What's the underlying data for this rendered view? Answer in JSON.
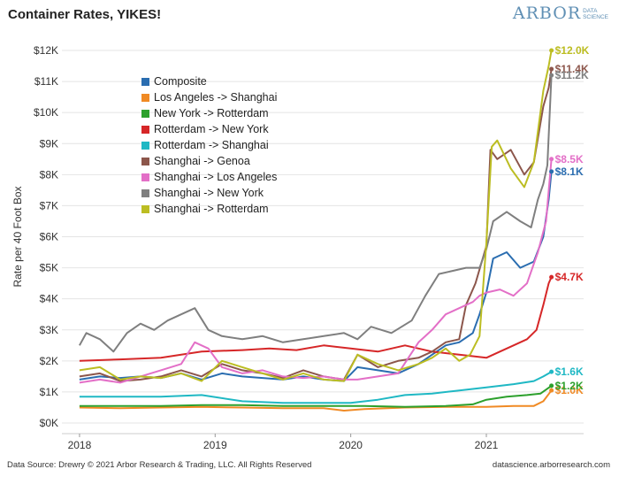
{
  "header": {
    "title": "Container Rates, YIKES!"
  },
  "logo": {
    "main": "ARBOR",
    "sub1": "DATA",
    "sub2": "SCIENCE"
  },
  "footer": {
    "source": "Data Source: Drewry © 2021 Arbor Research & Trading, LLC. All Rights Reserved",
    "site": "datascience.arborresearch.com"
  },
  "chart_data": {
    "type": "line",
    "title": "Container Rates, YIKES!",
    "xlabel": "",
    "ylabel": "Rate per 40 Foot Box",
    "xlim": [
      2018.0,
      2021.5
    ],
    "ylim": [
      0,
      12000
    ],
    "x_ticks": [
      2018,
      2019,
      2020,
      2021
    ],
    "y_ticks": [
      0,
      1000,
      2000,
      3000,
      4000,
      5000,
      6000,
      7000,
      8000,
      9000,
      10000,
      11000,
      12000
    ],
    "y_tick_labels": [
      "$0K",
      "$1K",
      "$2K",
      "$3K",
      "$4K",
      "$5K",
      "$6K",
      "$7K",
      "$8K",
      "$9K",
      "$10K",
      "$11K",
      "$12K"
    ],
    "grid": "horizontal",
    "legend_position": "top-left",
    "series": [
      {
        "name": "Composite",
        "color": "#2a6db0",
        "end_label": "$8.1K",
        "x": [
          2018.0,
          2018.15,
          2018.3,
          2018.45,
          2018.6,
          2018.75,
          2018.9,
          2019.05,
          2019.2,
          2019.35,
          2019.5,
          2019.65,
          2019.8,
          2019.95,
          2020.05,
          2020.2,
          2020.35,
          2020.5,
          2020.6,
          2020.7,
          2020.8,
          2020.9,
          2020.95,
          2021.0,
          2021.05,
          2021.15,
          2021.25,
          2021.35,
          2021.42,
          2021.46,
          2021.48
        ],
        "y": [
          1400,
          1500,
          1450,
          1500,
          1450,
          1600,
          1400,
          1600,
          1500,
          1450,
          1400,
          1500,
          1400,
          1350,
          1800,
          1700,
          1600,
          1900,
          2200,
          2500,
          2600,
          2900,
          3500,
          4200,
          5300,
          5500,
          5000,
          5200,
          6000,
          7200,
          8100
        ]
      },
      {
        "name": "Los Angeles -> Shanghai",
        "color": "#f08a24",
        "end_label": "$1.0K",
        "x": [
          2018.0,
          2018.3,
          2018.6,
          2018.9,
          2019.2,
          2019.5,
          2019.8,
          2019.95,
          2020.1,
          2020.4,
          2020.7,
          2021.0,
          2021.2,
          2021.35,
          2021.42,
          2021.48
        ],
        "y": [
          500,
          480,
          500,
          520,
          500,
          480,
          480,
          400,
          450,
          500,
          520,
          520,
          550,
          550,
          700,
          1050
        ]
      },
      {
        "name": "New York -> Rotterdam",
        "color": "#2ca02c",
        "end_label": "$1.2K",
        "x": [
          2018.0,
          2018.3,
          2018.6,
          2018.9,
          2019.2,
          2019.5,
          2019.8,
          2020.1,
          2020.4,
          2020.7,
          2020.9,
          2021.0,
          2021.15,
          2021.3,
          2021.4,
          2021.48
        ],
        "y": [
          550,
          550,
          550,
          580,
          580,
          550,
          550,
          550,
          520,
          550,
          600,
          750,
          850,
          900,
          950,
          1200
        ]
      },
      {
        "name": "Rotterdam -> New York",
        "color": "#d62728",
        "end_label": "$4.7K",
        "x": [
          2018.0,
          2018.3,
          2018.6,
          2018.9,
          2019.2,
          2019.4,
          2019.6,
          2019.8,
          2020.0,
          2020.2,
          2020.4,
          2020.6,
          2020.8,
          2021.0,
          2021.1,
          2021.2,
          2021.3,
          2021.37,
          2021.42,
          2021.46,
          2021.48
        ],
        "y": [
          2000,
          2050,
          2100,
          2300,
          2350,
          2400,
          2350,
          2500,
          2400,
          2300,
          2500,
          2300,
          2200,
          2100,
          2300,
          2500,
          2700,
          3000,
          3800,
          4500,
          4700
        ]
      },
      {
        "name": "Rotterdam -> Shanghai",
        "color": "#1fb8c4",
        "end_label": "$1.6K",
        "x": [
          2018.0,
          2018.3,
          2018.6,
          2018.9,
          2019.2,
          2019.5,
          2019.8,
          2020.0,
          2020.2,
          2020.4,
          2020.6,
          2020.8,
          2021.0,
          2021.2,
          2021.35,
          2021.42,
          2021.48
        ],
        "y": [
          850,
          850,
          850,
          900,
          700,
          650,
          650,
          650,
          750,
          900,
          950,
          1050,
          1150,
          1250,
          1350,
          1500,
          1650
        ]
      },
      {
        "name": "Shanghai -> Genoa",
        "color": "#8c564b",
        "end_label": "$11.4K",
        "x": [
          2018.0,
          2018.15,
          2018.3,
          2018.45,
          2018.6,
          2018.75,
          2018.9,
          2019.05,
          2019.2,
          2019.35,
          2019.5,
          2019.65,
          2019.8,
          2019.95,
          2020.05,
          2020.2,
          2020.35,
          2020.5,
          2020.6,
          2020.7,
          2020.8,
          2020.85,
          2020.92,
          2021.0,
          2021.03,
          2021.08,
          2021.18,
          2021.28,
          2021.35,
          2021.42,
          2021.46,
          2021.48
        ],
        "y": [
          1500,
          1600,
          1350,
          1400,
          1500,
          1700,
          1500,
          1900,
          1700,
          1600,
          1450,
          1700,
          1500,
          1400,
          2200,
          1800,
          2000,
          2100,
          2300,
          2600,
          2700,
          3800,
          4500,
          5700,
          8800,
          8500,
          8800,
          8000,
          8400,
          10200,
          10800,
          11400
        ]
      },
      {
        "name": "Shanghai -> Los Angeles",
        "color": "#e36fc7",
        "end_label": "$8.5K",
        "x": [
          2018.0,
          2018.15,
          2018.3,
          2018.45,
          2018.6,
          2018.75,
          2018.85,
          2018.95,
          2019.05,
          2019.2,
          2019.35,
          2019.5,
          2019.65,
          2019.8,
          2019.95,
          2020.05,
          2020.2,
          2020.35,
          2020.5,
          2020.6,
          2020.7,
          2020.8,
          2020.9,
          2020.95,
          2021.0,
          2021.1,
          2021.2,
          2021.3,
          2021.38,
          2021.44,
          2021.48
        ],
        "y": [
          1300,
          1400,
          1300,
          1500,
          1700,
          1900,
          2600,
          2400,
          1800,
          1600,
          1700,
          1500,
          1450,
          1500,
          1400,
          1400,
          1500,
          1600,
          2600,
          3000,
          3500,
          3700,
          3900,
          4100,
          4200,
          4300,
          4100,
          4500,
          5500,
          6500,
          8500
        ]
      },
      {
        "name": "Shanghai -> New York",
        "color": "#7f7f7f",
        "end_label": "$11.2K",
        "x": [
          2018.0,
          2018.05,
          2018.15,
          2018.25,
          2018.35,
          2018.45,
          2018.55,
          2018.65,
          2018.75,
          2018.85,
          2018.95,
          2019.05,
          2019.2,
          2019.35,
          2019.5,
          2019.65,
          2019.8,
          2019.95,
          2020.05,
          2020.15,
          2020.3,
          2020.45,
          2020.55,
          2020.65,
          2020.75,
          2020.85,
          2020.95,
          2021.0,
          2021.05,
          2021.15,
          2021.25,
          2021.33,
          2021.38,
          2021.42,
          2021.45,
          2021.48
        ],
        "y": [
          2500,
          2900,
          2700,
          2300,
          2900,
          3200,
          3000,
          3300,
          3500,
          3700,
          3000,
          2800,
          2700,
          2800,
          2600,
          2700,
          2800,
          2900,
          2700,
          3100,
          2900,
          3300,
          4100,
          4800,
          4900,
          5000,
          5000,
          5600,
          6500,
          6800,
          6500,
          6300,
          7200,
          7700,
          8300,
          11200
        ]
      },
      {
        "name": "Shanghai -> Rotterdam",
        "color": "#bcbd22",
        "end_label": "$12.0K",
        "x": [
          2018.0,
          2018.15,
          2018.3,
          2018.45,
          2018.6,
          2018.75,
          2018.9,
          2019.05,
          2019.2,
          2019.35,
          2019.5,
          2019.65,
          2019.8,
          2019.95,
          2020.05,
          2020.2,
          2020.35,
          2020.5,
          2020.6,
          2020.7,
          2020.8,
          2020.88,
          2020.95,
          2021.0,
          2021.04,
          2021.08,
          2021.18,
          2021.28,
          2021.35,
          2021.42,
          2021.46,
          2021.48
        ],
        "y": [
          1700,
          1800,
          1400,
          1500,
          1450,
          1600,
          1350,
          2000,
          1800,
          1600,
          1400,
          1600,
          1400,
          1350,
          2200,
          1900,
          1700,
          1900,
          2100,
          2400,
          2000,
          2200,
          2800,
          5800,
          8900,
          9100,
          8200,
          7600,
          8400,
          10700,
          11500,
          12000
        ]
      }
    ]
  }
}
